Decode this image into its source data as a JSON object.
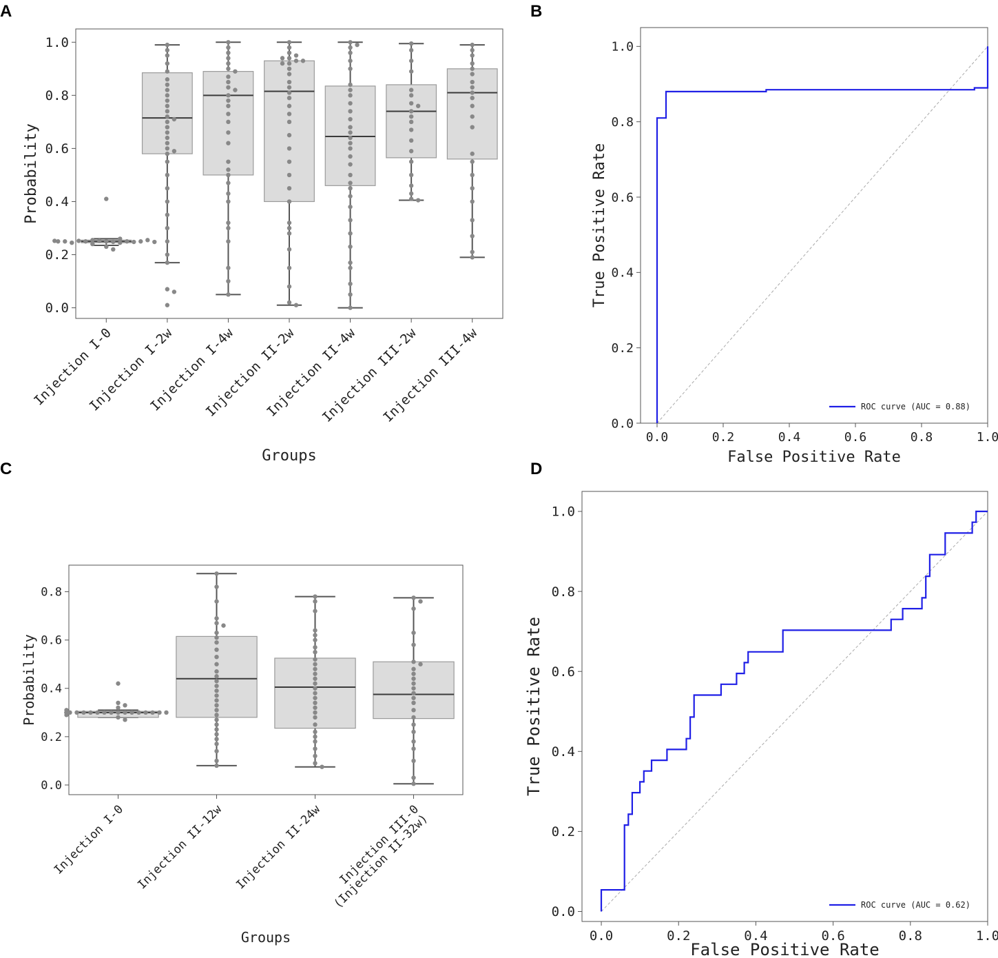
{
  "colors": {
    "box_fill": "#dcdcdc",
    "box_line": "#555555",
    "swarm": "#888888",
    "roc": "#1f1fe6",
    "diag": "#aaaaaa",
    "frame": "#555555"
  },
  "panels": {
    "A": {
      "letter": "A"
    },
    "B": {
      "letter": "B"
    },
    "C": {
      "letter": "C"
    },
    "D": {
      "letter": "D"
    }
  },
  "chart_data": [
    {
      "id": "A",
      "type": "box",
      "xlabel": "Groups",
      "ylabel": "Probability",
      "ylim": [
        -0.04,
        1.05
      ],
      "yticks": [
        "0.0",
        "0.2",
        "0.4",
        "0.6",
        "0.8",
        "1.0"
      ],
      "groups": [
        {
          "label": "Injection I-0",
          "q1": 0.245,
          "median": 0.25,
          "q3": 0.255,
          "whisker_low": 0.235,
          "whisker_high": 0.26,
          "points": [
            0.25,
            0.248,
            0.252,
            0.245,
            0.255,
            0.25,
            0.24,
            0.26,
            0.23,
            0.22,
            0.25,
            0.248,
            0.252,
            0.25,
            0.245,
            0.255,
            0.25,
            0.248,
            0.25,
            0.252,
            0.41
          ]
        },
        {
          "label": "Injection I-2w",
          "q1": 0.58,
          "median": 0.715,
          "q3": 0.885,
          "whisker_low": 0.17,
          "whisker_high": 0.99,
          "points": [
            0.99,
            0.97,
            0.95,
            0.92,
            0.89,
            0.86,
            0.84,
            0.82,
            0.8,
            0.78,
            0.76,
            0.74,
            0.72,
            0.71,
            0.7,
            0.68,
            0.66,
            0.64,
            0.62,
            0.6,
            0.59,
            0.58,
            0.55,
            0.5,
            0.45,
            0.4,
            0.35,
            0.3,
            0.25,
            0.2,
            0.17,
            0.07,
            0.06,
            0.01
          ]
        },
        {
          "label": "Injection I-4w",
          "q1": 0.5,
          "median": 0.8,
          "q3": 0.89,
          "whisker_low": 0.05,
          "whisker_high": 1.0,
          "points": [
            1.0,
            0.98,
            0.96,
            0.94,
            0.92,
            0.9,
            0.89,
            0.87,
            0.85,
            0.83,
            0.82,
            0.8,
            0.78,
            0.76,
            0.73,
            0.7,
            0.66,
            0.62,
            0.55,
            0.52,
            0.5,
            0.47,
            0.43,
            0.4,
            0.32,
            0.3,
            0.25,
            0.15,
            0.1,
            0.05
          ]
        },
        {
          "label": "Injection II-2w",
          "q1": 0.4,
          "median": 0.815,
          "q3": 0.93,
          "whisker_low": 0.01,
          "whisker_high": 1.0,
          "points": [
            1.0,
            0.98,
            0.96,
            0.95,
            0.94,
            0.94,
            0.93,
            0.93,
            0.92,
            0.92,
            0.9,
            0.88,
            0.85,
            0.83,
            0.81,
            0.79,
            0.76,
            0.73,
            0.7,
            0.65,
            0.6,
            0.55,
            0.5,
            0.45,
            0.4,
            0.32,
            0.3,
            0.28,
            0.22,
            0.15,
            0.08,
            0.02,
            0.01
          ]
        },
        {
          "label": "Injection II-4w",
          "q1": 0.46,
          "median": 0.645,
          "q3": 0.835,
          "whisker_low": 0.0,
          "whisker_high": 1.0,
          "points": [
            1.0,
            0.99,
            0.98,
            0.96,
            0.93,
            0.9,
            0.84,
            0.82,
            0.8,
            0.77,
            0.74,
            0.71,
            0.68,
            0.66,
            0.64,
            0.62,
            0.6,
            0.57,
            0.54,
            0.5,
            0.47,
            0.45,
            0.42,
            0.38,
            0.33,
            0.28,
            0.23,
            0.17,
            0.15,
            0.09,
            0.05,
            0.0
          ]
        },
        {
          "label": "Injection III-2w",
          "q1": 0.565,
          "median": 0.74,
          "q3": 0.84,
          "whisker_low": 0.405,
          "whisker_high": 0.995,
          "points": [
            0.995,
            0.97,
            0.93,
            0.89,
            0.82,
            0.8,
            0.77,
            0.76,
            0.74,
            0.72,
            0.7,
            0.67,
            0.63,
            0.59,
            0.55,
            0.5,
            0.46,
            0.43,
            0.41,
            0.405
          ]
        },
        {
          "label": "Injection III-4w",
          "q1": 0.56,
          "median": 0.81,
          "q3": 0.9,
          "whisker_low": 0.19,
          "whisker_high": 0.99,
          "points": [
            0.99,
            0.97,
            0.95,
            0.92,
            0.9,
            0.88,
            0.85,
            0.83,
            0.81,
            0.79,
            0.76,
            0.72,
            0.68,
            0.58,
            0.55,
            0.5,
            0.45,
            0.4,
            0.33,
            0.27,
            0.21,
            0.19
          ]
        }
      ]
    },
    {
      "id": "B",
      "type": "line",
      "xlabel": "False Positive Rate",
      "ylabel": "True Positive Rate",
      "xlim": [
        -0.05,
        1.0
      ],
      "ylim": [
        0.0,
        1.05
      ],
      "xticks": [
        "0.0",
        "0.2",
        "0.4",
        "0.6",
        "0.8",
        "1.0"
      ],
      "yticks": [
        "0.0",
        "0.2",
        "0.4",
        "0.6",
        "0.8",
        "1.0"
      ],
      "legend": "ROC curve (AUC = 0.88)",
      "series": [
        {
          "name": "ROC curve",
          "x": [
            0.0,
            0.0,
            0.027,
            0.027,
            0.33,
            0.33,
            0.96,
            0.96,
            1.0,
            1.0
          ],
          "y": [
            0.0,
            0.81,
            0.81,
            0.88,
            0.88,
            0.885,
            0.885,
            0.89,
            0.89,
            1.0
          ]
        },
        {
          "name": "chance",
          "x": [
            0.0,
            1.0
          ],
          "y": [
            0.0,
            1.0
          ]
        }
      ]
    },
    {
      "id": "C",
      "type": "box",
      "xlabel": "Groups",
      "ylabel": "Probability",
      "ylim": [
        -0.04,
        0.91
      ],
      "yticks": [
        "0.0",
        "0.2",
        "0.4",
        "0.6",
        "0.8"
      ],
      "groups": [
        {
          "label": "Injection I-0",
          "q1": 0.28,
          "median": 0.3,
          "q3": 0.305,
          "whisker_low": 0.28,
          "whisker_high": 0.31,
          "points": [
            0.3,
            0.3,
            0.3,
            0.3,
            0.3,
            0.3,
            0.3,
            0.3,
            0.3,
            0.3,
            0.3,
            0.3,
            0.3,
            0.3,
            0.3,
            0.3,
            0.3,
            0.3,
            0.3,
            0.3,
            0.31,
            0.32,
            0.33,
            0.34,
            0.29,
            0.28,
            0.27,
            0.42
          ]
        },
        {
          "label": "Injection II-12w",
          "q1": 0.28,
          "median": 0.44,
          "q3": 0.615,
          "whisker_low": 0.08,
          "whisker_high": 0.875,
          "points": [
            0.875,
            0.82,
            0.76,
            0.69,
            0.67,
            0.66,
            0.63,
            0.61,
            0.59,
            0.56,
            0.53,
            0.5,
            0.47,
            0.45,
            0.43,
            0.41,
            0.39,
            0.37,
            0.35,
            0.33,
            0.31,
            0.29,
            0.27,
            0.25,
            0.23,
            0.21,
            0.19,
            0.17,
            0.14,
            0.1,
            0.08
          ]
        },
        {
          "label": "Injection II-24w",
          "q1": 0.235,
          "median": 0.405,
          "q3": 0.525,
          "whisker_low": 0.075,
          "whisker_high": 0.78,
          "points": [
            0.78,
            0.76,
            0.72,
            0.64,
            0.62,
            0.6,
            0.57,
            0.55,
            0.52,
            0.5,
            0.48,
            0.46,
            0.44,
            0.42,
            0.4,
            0.38,
            0.36,
            0.34,
            0.32,
            0.3,
            0.28,
            0.25,
            0.22,
            0.2,
            0.18,
            0.15,
            0.12,
            0.09,
            0.075
          ]
        },
        {
          "label": "Injection III-0\n(Injection II-32w)",
          "q1": 0.275,
          "median": 0.375,
          "q3": 0.51,
          "whisker_low": 0.005,
          "whisker_high": 0.775,
          "points": [
            0.775,
            0.76,
            0.73,
            0.63,
            0.58,
            0.51,
            0.5,
            0.48,
            0.46,
            0.44,
            0.42,
            0.4,
            0.38,
            0.36,
            0.34,
            0.31,
            0.28,
            0.25,
            0.22,
            0.18,
            0.15,
            0.1,
            0.03,
            0.005
          ]
        }
      ]
    },
    {
      "id": "D",
      "type": "line",
      "xlabel": "False Positive Rate",
      "ylabel": "True Positive Rate",
      "xlim": [
        -0.05,
        1.0
      ],
      "ylim": [
        -0.025,
        1.05
      ],
      "xticks": [
        "0.0",
        "0.2",
        "0.4",
        "0.6",
        "0.8",
        "1.0"
      ],
      "yticks": [
        "0.0",
        "0.2",
        "0.4",
        "0.6",
        "0.8",
        "1.0"
      ],
      "legend": "ROC curve (AUC = 0.62)",
      "series": [
        {
          "name": "ROC curve",
          "x": [
            0.0,
            0.0,
            0.06,
            0.06,
            0.07,
            0.07,
            0.08,
            0.08,
            0.1,
            0.1,
            0.11,
            0.11,
            0.13,
            0.13,
            0.17,
            0.17,
            0.22,
            0.22,
            0.23,
            0.23,
            0.24,
            0.24,
            0.31,
            0.31,
            0.35,
            0.35,
            0.37,
            0.37,
            0.38,
            0.38,
            0.47,
            0.47,
            0.75,
            0.75,
            0.78,
            0.78,
            0.83,
            0.83,
            0.84,
            0.84,
            0.85,
            0.85,
            0.89,
            0.89,
            0.96,
            0.96,
            0.97,
            0.97,
            1.0
          ],
          "y": [
            0.0,
            0.054,
            0.054,
            0.216,
            0.216,
            0.243,
            0.243,
            0.297,
            0.297,
            0.324,
            0.324,
            0.351,
            0.351,
            0.378,
            0.378,
            0.405,
            0.405,
            0.432,
            0.432,
            0.486,
            0.486,
            0.541,
            0.541,
            0.568,
            0.568,
            0.595,
            0.595,
            0.622,
            0.622,
            0.649,
            0.649,
            0.703,
            0.703,
            0.73,
            0.73,
            0.757,
            0.757,
            0.784,
            0.784,
            0.838,
            0.838,
            0.892,
            0.892,
            0.946,
            0.946,
            0.973,
            0.973,
            1.0,
            1.0
          ]
        },
        {
          "name": "chance",
          "x": [
            0.0,
            1.0
          ],
          "y": [
            0.0,
            1.0
          ]
        }
      ]
    }
  ]
}
